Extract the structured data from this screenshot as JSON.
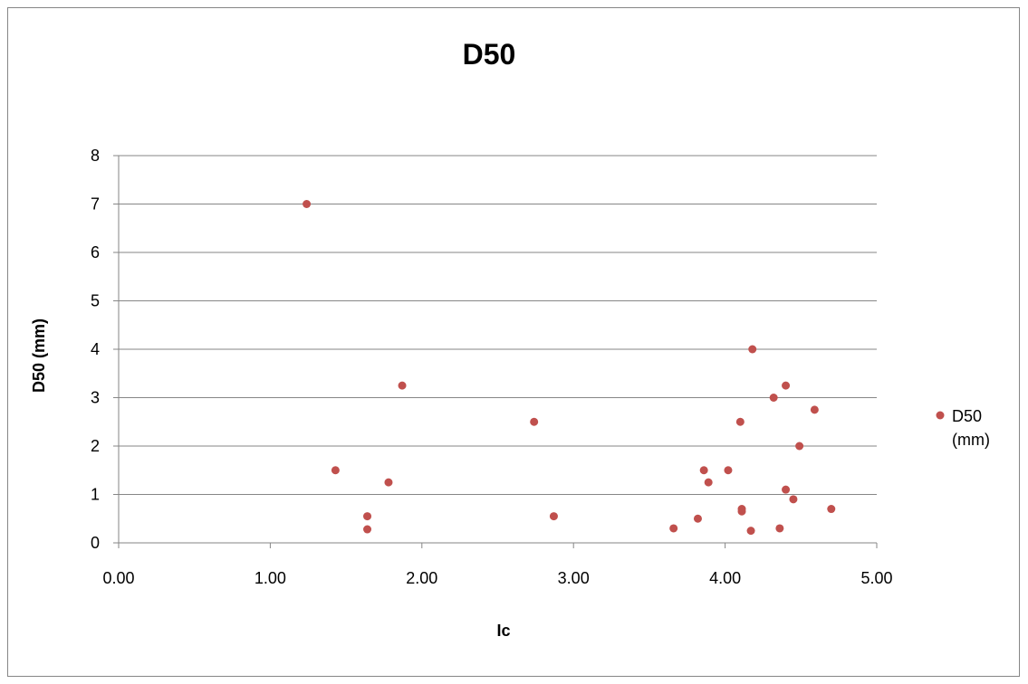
{
  "chart_data": {
    "type": "scatter",
    "title": "D50",
    "xlabel": "Ic",
    "ylabel": "D50 (mm)",
    "xlim": [
      0,
      5
    ],
    "ylim": [
      0,
      8
    ],
    "x_ticks": [
      "0.00",
      "1.00",
      "2.00",
      "3.00",
      "4.00",
      "5.00"
    ],
    "y_ticks": [
      "0",
      "1",
      "2",
      "3",
      "4",
      "5",
      "6",
      "7",
      "8"
    ],
    "grid": "horizontal",
    "legend_position": "right",
    "marker_color": "#C0504D",
    "series": [
      {
        "name": "D50 (mm)",
        "legend_lines": [
          "D50",
          "(mm)"
        ],
        "points": [
          [
            1.24,
            7.0
          ],
          [
            1.43,
            1.5
          ],
          [
            1.64,
            0.55
          ],
          [
            1.64,
            0.28
          ],
          [
            1.78,
            1.25
          ],
          [
            1.87,
            3.25
          ],
          [
            2.74,
            2.5
          ],
          [
            2.87,
            0.55
          ],
          [
            3.66,
            0.3
          ],
          [
            3.82,
            0.5
          ],
          [
            3.86,
            1.5
          ],
          [
            3.89,
            1.25
          ],
          [
            4.02,
            1.5
          ],
          [
            4.1,
            2.5
          ],
          [
            4.11,
            0.7
          ],
          [
            4.11,
            0.65
          ],
          [
            4.17,
            0.25
          ],
          [
            4.18,
            4.0
          ],
          [
            4.32,
            3.0
          ],
          [
            4.36,
            0.3
          ],
          [
            4.4,
            3.25
          ],
          [
            4.4,
            1.1
          ],
          [
            4.45,
            0.9
          ],
          [
            4.49,
            2.0
          ],
          [
            4.59,
            2.75
          ],
          [
            4.7,
            0.7
          ]
        ]
      }
    ]
  }
}
